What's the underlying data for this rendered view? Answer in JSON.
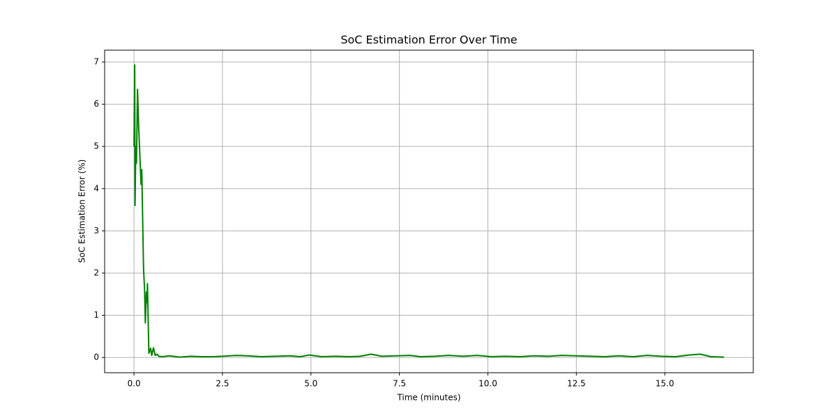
{
  "chart_data": {
    "type": "line",
    "title": "SoC Estimation Error Over Time",
    "xlabel": "Time (minutes)",
    "ylabel": "SoC Estimation Error (%)",
    "color": "#008000",
    "grid": true,
    "x": [
      0,
      0.02,
      0.03,
      0.05,
      0.07,
      0.1,
      0.13,
      0.2,
      0.22,
      0.27,
      0.3,
      0.32,
      0.35,
      0.37,
      0.38,
      0.42,
      0.47,
      0.5,
      0.55,
      0.6,
      0.65,
      0.7,
      0.8,
      1.0,
      1.3,
      1.6,
      1.9,
      2.2,
      2.5,
      2.9,
      3.2,
      3.6,
      4.0,
      4.4,
      4.7,
      4.95,
      5.3,
      5.7,
      6.1,
      6.4,
      6.7,
      7.0,
      7.4,
      7.8,
      8.1,
      8.5,
      8.9,
      9.3,
      9.7,
      10.1,
      10.5,
      10.9,
      11.3,
      11.7,
      12.1,
      12.5,
      12.9,
      13.3,
      13.7,
      14.1,
      14.5,
      14.9,
      15.3,
      15.7,
      16.0,
      16.3,
      16.67
    ],
    "values": [
      5.0,
      6.93,
      3.6,
      5.0,
      4.6,
      6.35,
      5.5,
      4.1,
      4.45,
      2.1,
      1.6,
      0.82,
      1.55,
      1.3,
      1.75,
      0.1,
      0.22,
      0.05,
      0.23,
      0.05,
      0.08,
      0.03,
      0.02,
      0.04,
      0.01,
      0.03,
      0.02,
      0.02,
      0.03,
      0.05,
      0.04,
      0.02,
      0.03,
      0.04,
      0.02,
      0.06,
      0.02,
      0.03,
      0.02,
      0.03,
      0.08,
      0.03,
      0.04,
      0.05,
      0.02,
      0.03,
      0.05,
      0.03,
      0.05,
      0.02,
      0.03,
      0.02,
      0.04,
      0.03,
      0.05,
      0.04,
      0.03,
      0.02,
      0.04,
      0.02,
      0.05,
      0.03,
      0.02,
      0.06,
      0.08,
      0.02,
      0.01
    ],
    "xlim": [
      -0.83,
      17.5
    ],
    "ylim": [
      -0.36,
      7.28
    ],
    "xticks": [
      {
        "value": 0,
        "label": "0.0"
      },
      {
        "value": 2.5,
        "label": "2.5"
      },
      {
        "value": 5,
        "label": "5.0"
      },
      {
        "value": 7.5,
        "label": "7.5"
      },
      {
        "value": 10,
        "label": "10.0"
      },
      {
        "value": 12.5,
        "label": "12.5"
      },
      {
        "value": 15,
        "label": "15.0"
      }
    ],
    "yticks": [
      0,
      1,
      2,
      3,
      4,
      5,
      6,
      7
    ]
  }
}
